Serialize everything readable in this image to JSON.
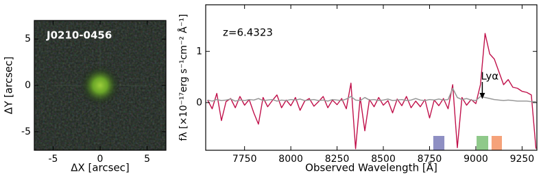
{
  "chart_data": [
    {
      "type": "image",
      "label": "J0210-0456",
      "xlabel": "ΔX [arcsec]",
      "ylabel": "ΔY [arcsec]",
      "xlim": [
        -7,
        7
      ],
      "ylim": [
        -7,
        7
      ],
      "xticks": [
        -5,
        0,
        5
      ],
      "yticks": [
        -5,
        0,
        5
      ]
    },
    {
      "type": "line",
      "annotation": "z=6.4323",
      "xlabel": "Observed Wavelength [Å]",
      "ylabel": "fλ [×10⁻¹⁷erg s⁻¹cm⁻² Å⁻¹]",
      "xlim": [
        7540,
        9330
      ],
      "ylim": [
        -0.93,
        1.91
      ],
      "xticks": [
        7750,
        8000,
        8250,
        8500,
        8750,
        9000,
        9250
      ],
      "yticks": [
        0,
        1
      ],
      "marker": {
        "text": "Lyα",
        "x": 9035
      },
      "bands": [
        {
          "x0": 8770,
          "x1": 8830,
          "color": "#8e8fc3"
        },
        {
          "x0": 9004,
          "x1": 9067,
          "color": "#8fc98a"
        },
        {
          "x0": 9085,
          "x1": 9141,
          "color": "#f5a27a"
        }
      ],
      "x": [
        7550,
        7575,
        7600,
        7625,
        7650,
        7675,
        7700,
        7725,
        7750,
        7775,
        7800,
        7825,
        7850,
        7875,
        7900,
        7925,
        7950,
        7975,
        8000,
        8025,
        8050,
        8075,
        8100,
        8125,
        8150,
        8175,
        8200,
        8225,
        8250,
        8275,
        8300,
        8325,
        8350,
        8375,
        8400,
        8425,
        8450,
        8475,
        8500,
        8525,
        8550,
        8575,
        8600,
        8625,
        8650,
        8675,
        8700,
        8725,
        8750,
        8775,
        8800,
        8825,
        8850,
        8875,
        8900,
        8925,
        8950,
        8975,
        9000,
        9025,
        9050,
        9075,
        9100,
        9125,
        9150,
        9175,
        9200,
        9225,
        9250,
        9275,
        9300,
        9325
      ],
      "series": [
        {
          "color": "#c0104a",
          "values": [
            0.05,
            -0.12,
            0.18,
            -0.35,
            0.02,
            0.08,
            -0.1,
            0.12,
            -0.05,
            0.06,
            -0.2,
            -0.42,
            0.1,
            -0.08,
            0.04,
            0.15,
            -0.1,
            0.05,
            -0.06,
            0.1,
            -0.15,
            0.03,
            0.08,
            -0.07,
            0.02,
            0.12,
            -0.1,
            0.05,
            -0.04,
            0.08,
            -0.12,
            0.38,
            -0.9,
            0.1,
            -0.55,
            0.06,
            -0.08,
            0.1,
            -0.05,
            0.04,
            -0.2,
            0.07,
            -0.06,
            0.12,
            -0.1,
            0.03,
            -0.08,
            0.06,
            -0.3,
            0.05,
            -0.06,
            0.08,
            -0.12,
            0.35,
            -0.88,
            0.1,
            -0.05,
            0.06,
            -0.02,
            0.35,
            1.35,
            0.95,
            0.85,
            0.6,
            0.35,
            0.45,
            0.3,
            0.28,
            0.22,
            0.2,
            0.15,
            -0.9
          ]
        },
        {
          "color": "#999999",
          "values": [
            0.05,
            0.03,
            0.06,
            0.04,
            0.05,
            0.07,
            0.03,
            0.05,
            0.04,
            0.06,
            0.05,
            0.08,
            0.04,
            0.05,
            0.06,
            0.03,
            0.05,
            0.04,
            0.06,
            0.05,
            0.07,
            0.04,
            0.05,
            0.06,
            0.04,
            0.05,
            0.03,
            0.06,
            0.05,
            0.04,
            0.07,
            0.12,
            0.05,
            0.04,
            0.1,
            0.05,
            0.06,
            0.04,
            0.05,
            0.07,
            0.04,
            0.05,
            0.06,
            0.04,
            0.05,
            0.08,
            0.05,
            0.04,
            0.06,
            0.05,
            0.07,
            0.05,
            0.06,
            0.28,
            0.1,
            0.06,
            0.08,
            0.05,
            0.04,
            0.12,
            0.1,
            0.08,
            0.06,
            0.05,
            0.04,
            0.05,
            0.04,
            0.03,
            0.03,
            0.03,
            0.02,
            0.02
          ]
        }
      ]
    }
  ]
}
